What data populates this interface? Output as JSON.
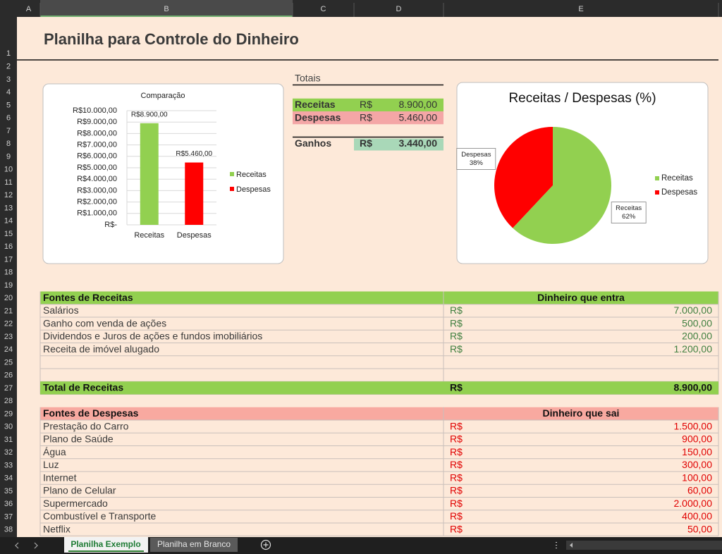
{
  "column_headers": [
    "A",
    "B",
    "C",
    "D",
    "E"
  ],
  "row_numbers": [
    1,
    2,
    3,
    4,
    5,
    6,
    7,
    8,
    9,
    10,
    11,
    12,
    13,
    14,
    15,
    16,
    17,
    18,
    19,
    20,
    21,
    22,
    23,
    24,
    25,
    26,
    27,
    28,
    29,
    30,
    31,
    32,
    33,
    34,
    35,
    36,
    37,
    38
  ],
  "title": "Planilha para Controle do Dinheiro",
  "totals": {
    "heading": "Totais",
    "rows": [
      [
        "Receitas",
        "R$",
        "8.900,00"
      ],
      [
        "Despesas",
        "R$",
        "5.460,00"
      ],
      [
        "Ganhos",
        "R$",
        "3.440,00"
      ]
    ]
  },
  "chart_data": [
    {
      "type": "bar",
      "title": "Comparação",
      "categories": [
        "Receitas",
        "Despesas"
      ],
      "values": [
        8900,
        5460
      ],
      "value_labels": [
        "R$8.900,00",
        "R$5.460,00"
      ],
      "colors": [
        "#92d050",
        "#ff0000"
      ],
      "ylim": [
        0,
        10000
      ],
      "yticks": [
        {
          "value": 0,
          "label": "R$-"
        },
        {
          "value": 1000,
          "label": "R$1.000,00"
        },
        {
          "value": 2000,
          "label": "R$2.000,00"
        },
        {
          "value": 3000,
          "label": "R$3.000,00"
        },
        {
          "value": 4000,
          "label": "R$4.000,00"
        },
        {
          "value": 5000,
          "label": "R$5.000,00"
        },
        {
          "value": 6000,
          "label": "R$6.000,00"
        },
        {
          "value": 7000,
          "label": "R$7.000,00"
        },
        {
          "value": 8000,
          "label": "R$8.000,00"
        },
        {
          "value": 9000,
          "label": "R$9.000,00"
        },
        {
          "value": 10000,
          "label": "R$10.000,00"
        }
      ],
      "grid": true,
      "legend": "right"
    },
    {
      "type": "pie",
      "title": "Receitas / Despesas (%)",
      "categories": [
        "Receitas",
        "Despesas"
      ],
      "values": [
        62,
        38
      ],
      "value_labels": [
        "62%",
        "38%"
      ],
      "colors": [
        "#92d050",
        "#ff0000"
      ],
      "legend": "right"
    }
  ],
  "income": {
    "header": [
      "Fontes de Receitas",
      "Dinheiro que entra"
    ],
    "rows": [
      [
        "Salários",
        "R$",
        "7.000,00"
      ],
      [
        "Ganho com venda de ações",
        "R$",
        "500,00"
      ],
      [
        "Dividendos e Juros de ações e fundos imobiliários",
        "R$",
        "200,00"
      ],
      [
        "Receita de imóvel alugado",
        "R$",
        "1.200,00"
      ]
    ],
    "total": [
      "Total de Receitas",
      "R$",
      "8.900,00"
    ]
  },
  "expenses": {
    "header": [
      "Fontes de Despesas",
      "Dinheiro que sai"
    ],
    "rows": [
      [
        "Prestação do Carro",
        "R$",
        "1.500,00"
      ],
      [
        "Plano de Saúde",
        "R$",
        "900,00"
      ],
      [
        "Água",
        "R$",
        "150,00"
      ],
      [
        "Luz",
        "R$",
        "300,00"
      ],
      [
        "Internet",
        "R$",
        "100,00"
      ],
      [
        "Plano de Celular",
        "R$",
        "60,00"
      ],
      [
        "Supermercado",
        "R$",
        "2.000,00"
      ],
      [
        "Combustível e Transporte",
        "R$",
        "400,00"
      ],
      [
        "Netflix",
        "R$",
        "50,00"
      ]
    ]
  },
  "sheet_tabs": [
    "Planilha Exemplo",
    "Planilha em Branco"
  ]
}
